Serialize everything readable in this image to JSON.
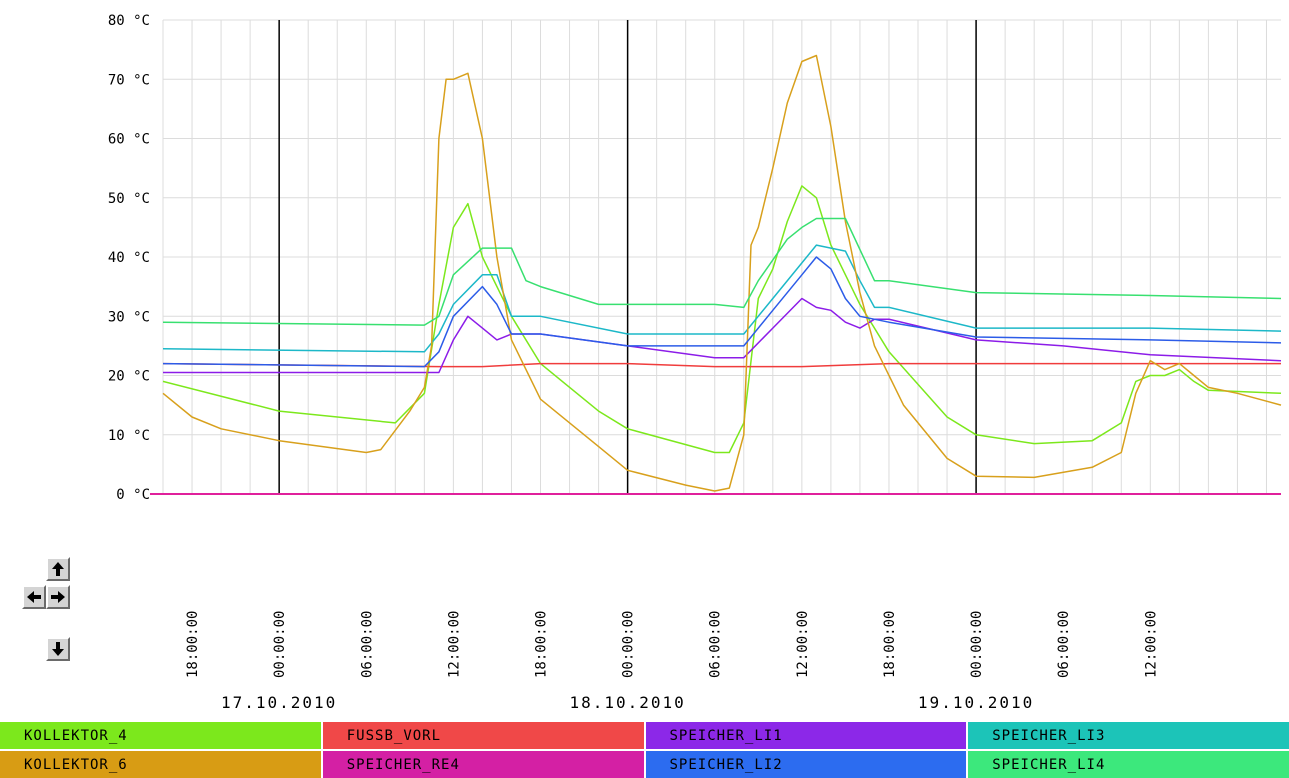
{
  "chart_data": {
    "type": "line",
    "y_unit": "°C",
    "ylim": [
      0,
      80
    ],
    "y_ticks": [
      "0 °C",
      "10 °C",
      "20 °C",
      "30 °C",
      "40 °C",
      "50 °C",
      "60 °C",
      "70 °C",
      "80 °C"
    ],
    "xlim": [
      "2010-10-16T16:00",
      "2010-10-19T21:00"
    ],
    "x_ticks": [
      {
        "t": "2010-10-16T18:00",
        "label": "18:00:00"
      },
      {
        "t": "2010-10-17T00:00",
        "label": "00:00:00"
      },
      {
        "t": "2010-10-17T06:00",
        "label": "06:00:00"
      },
      {
        "t": "2010-10-17T12:00",
        "label": "12:00:00"
      },
      {
        "t": "2010-10-17T18:00",
        "label": "18:00:00"
      },
      {
        "t": "2010-10-18T00:00",
        "label": "00:00:00"
      },
      {
        "t": "2010-10-18T06:00",
        "label": "06:00:00"
      },
      {
        "t": "2010-10-18T12:00",
        "label": "12:00:00"
      },
      {
        "t": "2010-10-18T18:00",
        "label": "18:00:00"
      },
      {
        "t": "2010-10-19T00:00",
        "label": "00:00:00"
      },
      {
        "t": "2010-10-19T06:00",
        "label": "06:00:00"
      },
      {
        "t": "2010-10-19T12:00",
        "label": "12:00:00"
      }
    ],
    "day_labels": [
      {
        "t": "2010-10-17T00:00",
        "label": "17.10.2010"
      },
      {
        "t": "2010-10-18T00:00",
        "label": "18.10.2010"
      },
      {
        "t": "2010-10-19T00:00",
        "label": "19.10.2010"
      }
    ],
    "grid": true,
    "legend": "bottom",
    "series": [
      {
        "name": "KOLLEKTOR_4",
        "color": "#7ce81c",
        "points": [
          [
            "2010-10-16T16:00",
            19
          ],
          [
            "2010-10-17T00:00",
            14
          ],
          [
            "2010-10-17T08:00",
            12
          ],
          [
            "2010-10-17T10:00",
            17
          ],
          [
            "2010-10-17T11:00",
            32
          ],
          [
            "2010-10-17T12:00",
            45
          ],
          [
            "2010-10-17T13:00",
            49
          ],
          [
            "2010-10-17T14:00",
            40
          ],
          [
            "2010-10-17T16:00",
            30
          ],
          [
            "2010-10-17T18:00",
            22
          ],
          [
            "2010-10-17T22:00",
            14
          ],
          [
            "2010-10-18T00:00",
            11
          ],
          [
            "2010-10-18T06:00",
            7
          ],
          [
            "2010-10-18T07:00",
            7
          ],
          [
            "2010-10-18T08:00",
            12
          ],
          [
            "2010-10-18T09:00",
            33
          ],
          [
            "2010-10-18T10:00",
            38
          ],
          [
            "2010-10-18T11:00",
            46
          ],
          [
            "2010-10-18T12:00",
            52
          ],
          [
            "2010-10-18T13:00",
            50
          ],
          [
            "2010-10-18T14:00",
            42
          ],
          [
            "2010-10-18T16:00",
            32
          ],
          [
            "2010-10-18T18:00",
            24
          ],
          [
            "2010-10-18T22:00",
            13
          ],
          [
            "2010-10-19T00:00",
            10
          ],
          [
            "2010-10-19T04:00",
            8.5
          ],
          [
            "2010-10-19T08:00",
            9
          ],
          [
            "2010-10-19T10:00",
            12
          ],
          [
            "2010-10-19T11:00",
            19
          ],
          [
            "2010-10-19T12:00",
            20
          ],
          [
            "2010-10-19T13:00",
            20
          ],
          [
            "2010-10-19T14:00",
            21
          ],
          [
            "2010-10-19T15:00",
            19
          ],
          [
            "2010-10-19T16:00",
            17.5
          ],
          [
            "2010-10-19T21:00",
            17
          ]
        ]
      },
      {
        "name": "FUSSB_VORL",
        "color": "#f03c3c",
        "points": [
          [
            "2010-10-16T16:00",
            22
          ],
          [
            "2010-10-17T11:00",
            21.5
          ],
          [
            "2010-10-17T14:00",
            21.5
          ],
          [
            "2010-10-17T18:00",
            22
          ],
          [
            "2010-10-18T00:00",
            22
          ],
          [
            "2010-10-18T06:00",
            21.5
          ],
          [
            "2010-10-18T12:00",
            21.5
          ],
          [
            "2010-10-18T18:00",
            22
          ],
          [
            "2010-10-19T00:00",
            22
          ],
          [
            "2010-10-19T21:00",
            22
          ]
        ]
      },
      {
        "name": "SPEICHER_LI1",
        "color": "#8c1ce8",
        "points": [
          [
            "2010-10-16T16:00",
            20.5
          ],
          [
            "2010-10-17T11:00",
            20.5
          ],
          [
            "2010-10-17T12:00",
            26
          ],
          [
            "2010-10-17T13:00",
            30
          ],
          [
            "2010-10-17T14:00",
            28
          ],
          [
            "2010-10-17T15:00",
            26
          ],
          [
            "2010-10-17T16:00",
            27
          ],
          [
            "2010-10-17T18:00",
            27
          ],
          [
            "2010-10-18T00:00",
            25
          ],
          [
            "2010-10-18T06:00",
            23
          ],
          [
            "2010-10-18T08:00",
            23
          ],
          [
            "2010-10-18T10:00",
            28
          ],
          [
            "2010-10-18T12:00",
            33
          ],
          [
            "2010-10-18T13:00",
            31.5
          ],
          [
            "2010-10-18T14:00",
            31
          ],
          [
            "2010-10-18T15:00",
            29
          ],
          [
            "2010-10-18T16:00",
            28
          ],
          [
            "2010-10-18T17:00",
            29.5
          ],
          [
            "2010-10-18T18:00",
            29.5
          ],
          [
            "2010-10-19T00:00",
            26
          ],
          [
            "2010-10-19T06:00",
            25
          ],
          [
            "2010-10-19T12:00",
            23.5
          ],
          [
            "2010-10-19T21:00",
            22.5
          ]
        ]
      },
      {
        "name": "SPEICHER_LI3",
        "color": "#1cb8c8",
        "points": [
          [
            "2010-10-16T16:00",
            24.5
          ],
          [
            "2010-10-17T10:00",
            24
          ],
          [
            "2010-10-17T11:00",
            27
          ],
          [
            "2010-10-17T12:00",
            32
          ],
          [
            "2010-10-17T14:00",
            37
          ],
          [
            "2010-10-17T15:00",
            37
          ],
          [
            "2010-10-17T16:00",
            30
          ],
          [
            "2010-10-17T18:00",
            30
          ],
          [
            "2010-10-18T00:00",
            27
          ],
          [
            "2010-10-18T08:00",
            27
          ],
          [
            "2010-10-18T10:00",
            33
          ],
          [
            "2010-10-18T12:00",
            39
          ],
          [
            "2010-10-18T13:00",
            42
          ],
          [
            "2010-10-18T15:00",
            41
          ],
          [
            "2010-10-18T16:00",
            36
          ],
          [
            "2010-10-18T17:00",
            31.5
          ],
          [
            "2010-10-18T18:00",
            31.5
          ],
          [
            "2010-10-19T00:00",
            28
          ],
          [
            "2010-10-19T12:00",
            28
          ],
          [
            "2010-10-19T21:00",
            27.5
          ]
        ]
      },
      {
        "name": "KOLLEKTOR_6",
        "color": "#d8a01c",
        "points": [
          [
            "2010-10-16T16:00",
            17
          ],
          [
            "2010-10-16T18:00",
            13
          ],
          [
            "2010-10-16T20:00",
            11
          ],
          [
            "2010-10-17T00:00",
            9
          ],
          [
            "2010-10-17T06:00",
            7
          ],
          [
            "2010-10-17T07:00",
            7.5
          ],
          [
            "2010-10-17T09:00",
            14
          ],
          [
            "2010-10-17T10:00",
            18
          ],
          [
            "2010-10-17T10:30",
            25
          ],
          [
            "2010-10-17T11:00",
            60
          ],
          [
            "2010-10-17T11:30",
            70
          ],
          [
            "2010-10-17T12:00",
            70
          ],
          [
            "2010-10-17T13:00",
            71
          ],
          [
            "2010-10-17T14:00",
            60
          ],
          [
            "2010-10-17T15:00",
            40
          ],
          [
            "2010-10-17T16:00",
            26
          ],
          [
            "2010-10-17T18:00",
            16
          ],
          [
            "2010-10-17T22:00",
            8
          ],
          [
            "2010-10-18T00:00",
            4
          ],
          [
            "2010-10-18T04:00",
            1.5
          ],
          [
            "2010-10-18T06:00",
            0.5
          ],
          [
            "2010-10-18T07:00",
            1
          ],
          [
            "2010-10-18T08:00",
            10
          ],
          [
            "2010-10-18T08:30",
            42
          ],
          [
            "2010-10-18T09:00",
            45
          ],
          [
            "2010-10-18T10:00",
            55
          ],
          [
            "2010-10-18T11:00",
            66
          ],
          [
            "2010-10-18T12:00",
            73
          ],
          [
            "2010-10-18T13:00",
            74
          ],
          [
            "2010-10-18T14:00",
            62
          ],
          [
            "2010-10-18T15:00",
            46
          ],
          [
            "2010-10-18T16:00",
            34
          ],
          [
            "2010-10-18T17:00",
            25
          ],
          [
            "2010-10-18T19:00",
            15
          ],
          [
            "2010-10-18T22:00",
            6
          ],
          [
            "2010-10-19T00:00",
            3
          ],
          [
            "2010-10-19T04:00",
            2.8
          ],
          [
            "2010-10-19T08:00",
            4.5
          ],
          [
            "2010-10-19T10:00",
            7
          ],
          [
            "2010-10-19T11:00",
            17
          ],
          [
            "2010-10-19T12:00",
            22.5
          ],
          [
            "2010-10-19T13:00",
            21
          ],
          [
            "2010-10-19T14:00",
            22
          ],
          [
            "2010-10-19T15:00",
            20
          ],
          [
            "2010-10-19T16:00",
            18
          ],
          [
            "2010-10-19T18:00",
            17
          ],
          [
            "2010-10-19T21:00",
            15
          ]
        ]
      },
      {
        "name": "SPEICHER_RE4",
        "color": "#e0209c",
        "points": [
          [
            "2010-10-16T16:00",
            0
          ],
          [
            "2010-10-19T21:00",
            0
          ]
        ]
      },
      {
        "name": "SPEICHER_LI2",
        "color": "#2c5ce8",
        "points": [
          [
            "2010-10-16T16:00",
            22
          ],
          [
            "2010-10-17T10:00",
            21.5
          ],
          [
            "2010-10-17T11:00",
            24
          ],
          [
            "2010-10-17T12:00",
            30
          ],
          [
            "2010-10-17T14:00",
            35
          ],
          [
            "2010-10-17T15:00",
            32
          ],
          [
            "2010-10-17T16:00",
            27
          ],
          [
            "2010-10-17T18:00",
            27
          ],
          [
            "2010-10-18T00:00",
            25
          ],
          [
            "2010-10-18T08:00",
            25
          ],
          [
            "2010-10-18T10:00",
            31
          ],
          [
            "2010-10-18T12:00",
            37
          ],
          [
            "2010-10-18T13:00",
            40
          ],
          [
            "2010-10-18T14:00",
            38
          ],
          [
            "2010-10-18T15:00",
            33
          ],
          [
            "2010-10-18T16:00",
            30
          ],
          [
            "2010-10-18T18:00",
            29
          ],
          [
            "2010-10-19T00:00",
            26.5
          ],
          [
            "2010-10-19T12:00",
            26
          ],
          [
            "2010-10-19T21:00",
            25.5
          ]
        ]
      },
      {
        "name": "SPEICHER_LI4",
        "color": "#38e070",
        "points": [
          [
            "2010-10-16T16:00",
            29
          ],
          [
            "2010-10-17T10:00",
            28.5
          ],
          [
            "2010-10-17T11:00",
            30
          ],
          [
            "2010-10-17T12:00",
            37
          ],
          [
            "2010-10-17T14:00",
            41.5
          ],
          [
            "2010-10-17T16:00",
            41.5
          ],
          [
            "2010-10-17T17:00",
            36
          ],
          [
            "2010-10-17T18:00",
            35
          ],
          [
            "2010-10-17T22:00",
            32
          ],
          [
            "2010-10-18T06:00",
            32
          ],
          [
            "2010-10-18T08:00",
            31.5
          ],
          [
            "2010-10-18T09:00",
            36
          ],
          [
            "2010-10-18T11:00",
            43
          ],
          [
            "2010-10-18T12:00",
            45
          ],
          [
            "2010-10-18T13:00",
            46.5
          ],
          [
            "2010-10-18T15:00",
            46.5
          ],
          [
            "2010-10-18T17:00",
            36
          ],
          [
            "2010-10-18T18:00",
            36
          ],
          [
            "2010-10-19T00:00",
            34
          ],
          [
            "2010-10-19T12:00",
            33.5
          ],
          [
            "2010-10-19T21:00",
            33
          ]
        ]
      }
    ]
  },
  "legend": {
    "items": [
      {
        "label": "KOLLEKTOR_4",
        "color": "#7ce81c"
      },
      {
        "label": "FUSSB_VORL",
        "color": "#f04848"
      },
      {
        "label": "SPEICHER_LI1",
        "color": "#8c28e8"
      },
      {
        "label": "SPEICHER_LI3",
        "color": "#1cc4b8"
      },
      {
        "label": "KOLLEKTOR_6",
        "color": "#d89c14"
      },
      {
        "label": "SPEICHER_RE4",
        "color": "#d420a4"
      },
      {
        "label": "SPEICHER_LI2",
        "color": "#2c6cf0"
      },
      {
        "label": "SPEICHER_LI4",
        "color": "#3ce87c"
      }
    ]
  },
  "nav": {
    "up": "arrow-up-icon",
    "left": "arrow-left-icon",
    "right": "arrow-right-icon",
    "down": "arrow-down-icon"
  }
}
